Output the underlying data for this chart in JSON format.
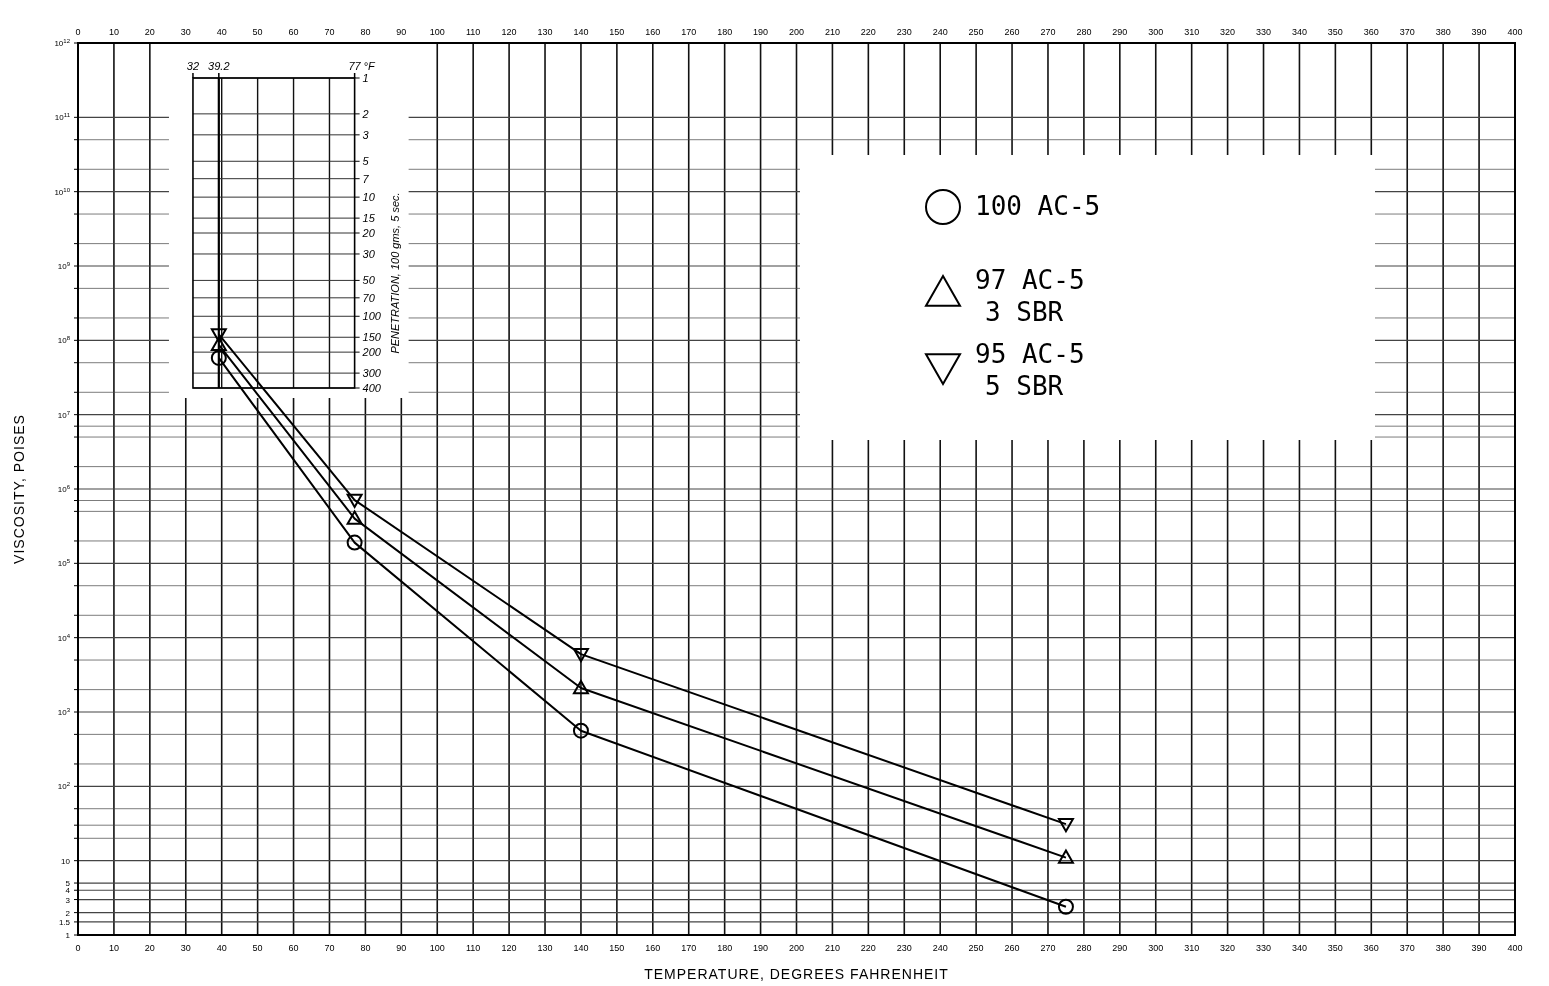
{
  "chart_data": [
    {
      "type": "line",
      "xlabel": "TEMPERATURE, DEGREES FAHRENHEIT",
      "ylabel": "VISCOSITY, POISES",
      "xlim": [
        0,
        400
      ],
      "xticks": [
        0,
        10,
        20,
        30,
        40,
        50,
        60,
        70,
        80,
        90,
        100,
        110,
        120,
        130,
        140,
        150,
        160,
        170,
        180,
        190,
        200,
        210,
        220,
        230,
        240,
        250,
        260,
        270,
        280,
        290,
        300,
        310,
        320,
        330,
        340,
        350,
        360,
        370,
        380,
        390,
        400
      ],
      "x2lim": [
        0,
        400
      ],
      "x2ticks": [
        0,
        10,
        20,
        30,
        40,
        50,
        60,
        70,
        80,
        90,
        100,
        110,
        120,
        130,
        140,
        150,
        160,
        170,
        180,
        190,
        200,
        210,
        220,
        230,
        240,
        250,
        260,
        270,
        280,
        290,
        300,
        310,
        320,
        330,
        340,
        350,
        360,
        370,
        380,
        390,
        400
      ],
      "ylim": [
        1,
        1000000000000
      ],
      "log": "y",
      "yticks": [
        {
          "value": 1000000000000,
          "label": "10$^{12}$"
        },
        {
          "value": 100000000000,
          "label": "10$^{11}$"
        },
        {
          "value": 50000000000,
          "label": null
        },
        {
          "value": 20000000000,
          "label": null
        },
        {
          "value": 10000000000,
          "label": "10$^{10}$"
        },
        {
          "value": 5000000000,
          "label": null
        },
        {
          "value": 2000000000,
          "label": null
        },
        {
          "value": 1000000000,
          "label": "10$^{9}$"
        },
        {
          "value": 500000000,
          "label": null
        },
        {
          "value": 200000000,
          "label": null
        },
        {
          "value": 100000000,
          "label": "10$^{8}$"
        },
        {
          "value": 50000000,
          "label": null
        },
        {
          "value": 20000000,
          "label": null
        },
        {
          "value": 10000000,
          "label": "10$^{7}$"
        },
        {
          "value": 7000000,
          "label": null
        },
        {
          "value": 5000000,
          "label": null
        },
        {
          "value": 2000000,
          "label": null
        },
        {
          "value": 1000000,
          "label": "10$^{6}$"
        },
        {
          "value": 700000,
          "label": null
        },
        {
          "value": 500000,
          "label": null
        },
        {
          "value": 200000,
          "label": null
        },
        {
          "value": 100000,
          "label": "10$^{5}$"
        },
        {
          "value": 50000,
          "label": null
        },
        {
          "value": 20000,
          "label": null
        },
        {
          "value": 10000,
          "label": "10$^{4}$"
        },
        {
          "value": 5000,
          "label": null
        },
        {
          "value": 2000,
          "label": null
        },
        {
          "value": 1000,
          "label": "10$^{3}$"
        },
        {
          "value": 500,
          "label": null
        },
        {
          "value": 200,
          "label": null
        },
        {
          "value": 100,
          "label": "10$^{2}$"
        },
        {
          "value": 50,
          "label": null
        },
        {
          "value": 30,
          "label": null
        },
        {
          "value": 20,
          "label": null
        },
        10,
        5,
        4,
        3,
        2,
        1.5,
        1
      ],
      "grid": true,
      "legend": "top right",
      "series": [
        {
          "name": "100 AC-5",
          "color": "#000000",
          "marker": "circle",
          "x": [
            39.2,
            77,
            140,
            275
          ],
          "values": [
            58000000,
            190000,
            560,
            2.4
          ]
        },
        {
          "name": "97 AC-5\n3 SBR",
          "color": "#000000",
          "marker": "triangle",
          "x": [
            39.2,
            77,
            140,
            275
          ],
          "values": [
            87000000,
            400000,
            2100,
            11
          ]
        },
        {
          "name": "95 AC-5\n5 SBR",
          "color": "#000000",
          "marker": "triangle-down",
          "x": [
            39.2,
            77,
            140,
            275
          ],
          "values": [
            120000000,
            710000,
            6000,
            31
          ]
        }
      ]
    },
    {
      "type": "line",
      "xlabel": "°F",
      "ylabel": "PENETRATION, 100 gms, 5 sec.",
      "xlim": [
        32,
        77
      ],
      "xticks": [
        32,
        39.2,
        77
      ],
      "ylim": [
        400,
        1
      ],
      "log": "y",
      "yticks": [
        1,
        2,
        3,
        5,
        7,
        10,
        15,
        20,
        30,
        50,
        70,
        100,
        150,
        200,
        300,
        400
      ],
      "grid": true,
      "ref_lines": [
        {
          "axis": "x",
          "value": 39.2
        }
      ]
    }
  ]
}
